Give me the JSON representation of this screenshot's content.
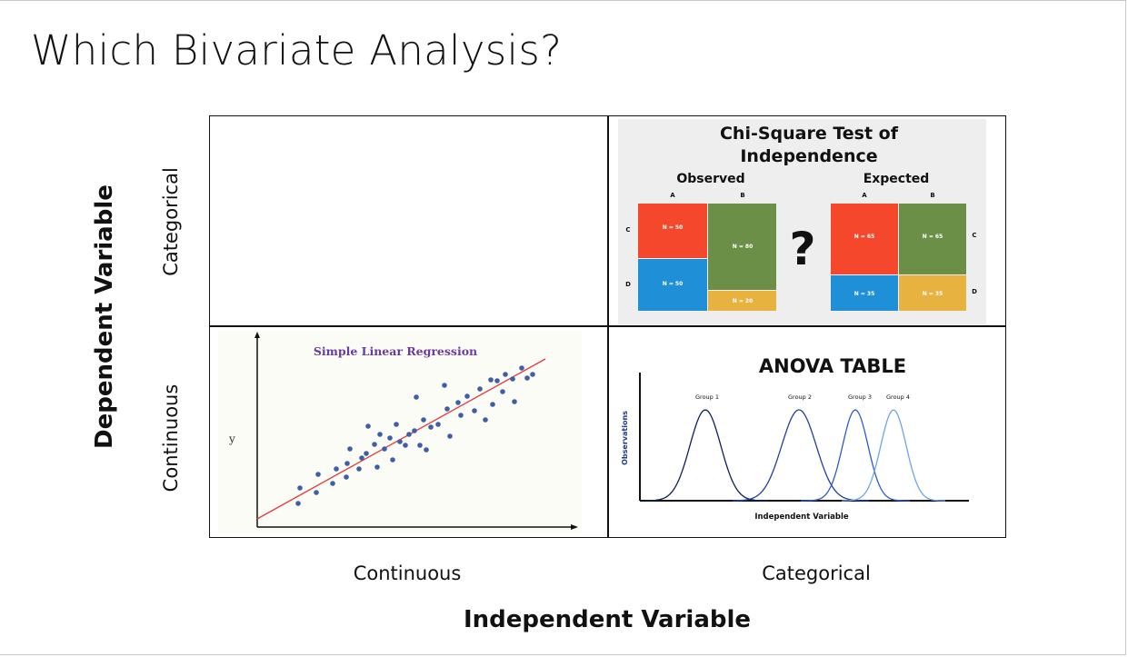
{
  "slide": {
    "title": "Which Bivariate Analysis?",
    "y_axis_label": "Dependent Variable",
    "x_axis_label": "Independent Variable",
    "rows": [
      "Categorical",
      "Continuous"
    ],
    "columns": [
      "Continuous",
      "Categorical"
    ]
  },
  "chi_square": {
    "title_line1": "Chi-Square Test of",
    "title_line2": "Independence",
    "observed_label": "Observed",
    "expected_label": "Expected",
    "col_labels": [
      "A",
      "B"
    ],
    "row_labels": [
      "C",
      "D"
    ],
    "observed_cells": [
      "N = 50",
      "N = 80",
      "N = 50",
      "N = 20"
    ],
    "expected_cells": [
      "N = 65",
      "N = 65",
      "N = 35",
      "N = 35"
    ],
    "question_mark": "?",
    "colors": {
      "red": "#f4472b",
      "blue": "#1f8fd8",
      "green": "#6b8f47",
      "yellow": "#e7b23f",
      "bg": "#eeeeee"
    }
  },
  "regression": {
    "title": "Simple Linear Regression",
    "y_label": "y",
    "title_color": "#6a3aa0",
    "line_color": "#e33b3b",
    "point_color": "#3e5fa8"
  },
  "anova": {
    "title": "ANOVA TABLE",
    "y_label": "Observations",
    "x_label": "Independent Variable",
    "groups": [
      "Group 1",
      "Group 2",
      "Group 3",
      "Group 4"
    ],
    "group_colors": [
      "#0d1f5a",
      "#233f99",
      "#2e5cc9",
      "#6ea3ea"
    ]
  }
}
